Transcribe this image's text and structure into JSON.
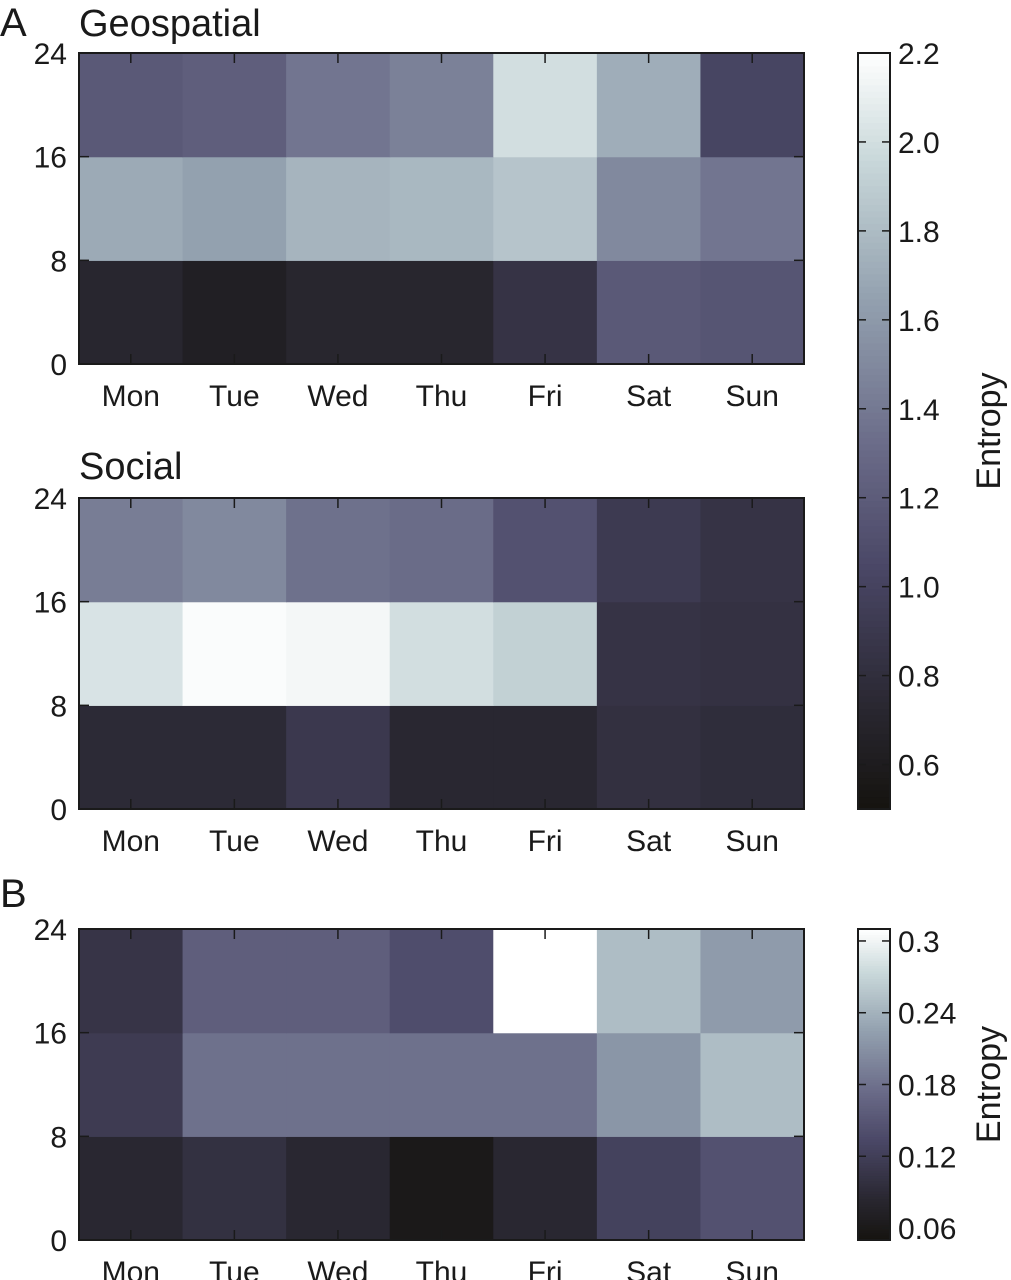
{
  "figure": {
    "panel_a_label": "A",
    "panel_b_label": "B"
  },
  "chart_data": [
    {
      "type": "heatmap",
      "panel": "A",
      "title": "Geospatial",
      "x_categories": [
        "Mon",
        "Tue",
        "Wed",
        "Thu",
        "Fri",
        "Sat",
        "Sun"
      ],
      "y_ticks": [
        0,
        8,
        16,
        24
      ],
      "y_bins": [
        "0-8",
        "8-16",
        "16-24"
      ],
      "values": [
        [
          0.72,
          0.64,
          0.71,
          0.71,
          0.85,
          1.18,
          1.15
        ],
        [
          1.7,
          1.65,
          1.76,
          1.78,
          1.85,
          1.5,
          1.38
        ],
        [
          1.18,
          1.22,
          1.38,
          1.45,
          2.0,
          1.72,
          1.02
        ]
      ],
      "colorbar": "A",
      "ylim": [
        0,
        24
      ]
    },
    {
      "type": "heatmap",
      "panel": "A",
      "title": "Social",
      "x_categories": [
        "Mon",
        "Tue",
        "Wed",
        "Thu",
        "Fri",
        "Sat",
        "Sun"
      ],
      "y_ticks": [
        0,
        8,
        16,
        24
      ],
      "y_bins": [
        "0-8",
        "8-16",
        "16-24"
      ],
      "values": [
        [
          0.76,
          0.76,
          0.9,
          0.73,
          0.73,
          0.82,
          0.79
        ],
        [
          2.03,
          2.18,
          2.15,
          2.0,
          1.92,
          0.85,
          0.83
        ],
        [
          1.43,
          1.5,
          1.35,
          1.32,
          1.12,
          0.92,
          0.85
        ]
      ],
      "colorbar": "A",
      "ylim": [
        0,
        24
      ]
    },
    {
      "type": "heatmap",
      "panel": "B",
      "title": "",
      "x_categories": [
        "Mon",
        "Tue",
        "Wed",
        "Thu",
        "Fri",
        "Sat",
        "Sun"
      ],
      "y_ticks": [
        0,
        8,
        16,
        24
      ],
      "y_bins": [
        "0-8",
        "8-16",
        "16-24"
      ],
      "values": [
        [
          0.085,
          0.1,
          0.085,
          0.06,
          0.085,
          0.125,
          0.145
        ],
        [
          0.115,
          0.18,
          0.18,
          0.18,
          0.18,
          0.215,
          0.25
        ],
        [
          0.105,
          0.16,
          0.16,
          0.14,
          0.31,
          0.25,
          0.22
        ]
      ],
      "colorbar": "B",
      "ylim": [
        0,
        24
      ]
    }
  ],
  "colorbars": {
    "A": {
      "label": "Entropy",
      "min": 0.5,
      "max": 2.2,
      "ticks": [
        0.6,
        0.8,
        1.0,
        1.2,
        1.4,
        1.6,
        1.8,
        2.0,
        2.2
      ],
      "tick_labels": [
        "0.6",
        "0.8",
        "1.0",
        "1.2",
        "1.4",
        "1.6",
        "1.8",
        "2.0",
        "2.2"
      ]
    },
    "B": {
      "label": "Entropy",
      "min": 0.05,
      "max": 0.31,
      "ticks": [
        0.06,
        0.12,
        0.18,
        0.24,
        0.3
      ],
      "tick_labels": [
        "0.06",
        "0.12",
        "0.18",
        "0.24",
        "0.3"
      ]
    }
  },
  "colormap": {
    "stops": [
      "#15130f",
      "#2a2832",
      "#4a4766",
      "#6a6b88",
      "#94a2b0",
      "#c9d8da",
      "#ffffff"
    ],
    "positions": [
      0.0,
      0.14,
      0.32,
      0.48,
      0.68,
      0.86,
      1.0
    ]
  }
}
